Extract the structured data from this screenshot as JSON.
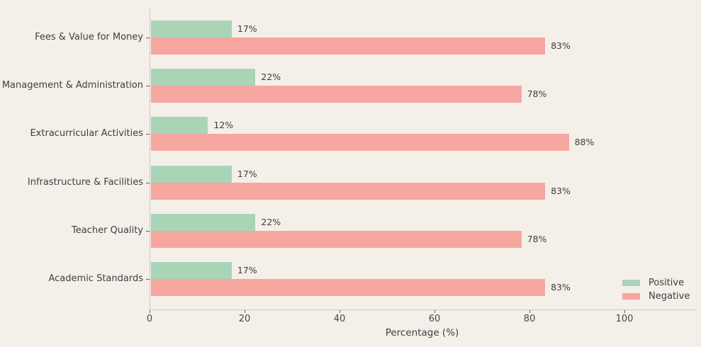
{
  "figure": {
    "background": "#f4efe9",
    "axis_color": "#ccc8c2",
    "text_color": "#3d3d3d"
  },
  "chart_data": {
    "type": "bar",
    "orientation": "horizontal",
    "title": "",
    "xlabel": "Percentage (%)",
    "ylabel": "",
    "categories": [
      "Fees & Value for Money",
      "Management & Administration",
      "Extracurricular Activities",
      "Infrastructure & Facilities",
      "Teacher Quality",
      "Academic Standards"
    ],
    "series": [
      {
        "name": "Positive",
        "color": "#a9d4b6",
        "values": [
          17,
          22,
          12,
          17,
          22,
          17
        ],
        "labels": [
          "17%",
          "22%",
          "12%",
          "17%",
          "22%",
          "17%"
        ]
      },
      {
        "name": "Negative",
        "color": "#f5a7a0",
        "values": [
          83,
          78,
          88,
          83,
          78,
          83
        ],
        "labels": [
          "83%",
          "78%",
          "88%",
          "83%",
          "78%",
          "83%"
        ]
      }
    ],
    "x_ticks": [
      0,
      20,
      40,
      60,
      80,
      100
    ],
    "x_tick_labels": [
      "0",
      "20",
      "40",
      "60",
      "80",
      "100"
    ],
    "xlim": [
      0,
      114.8
    ],
    "grid": false,
    "legend": {
      "position": "lower right",
      "entries": [
        {
          "label": "Positive",
          "color": "#a9d4b6"
        },
        {
          "label": "Negative",
          "color": "#f5a7a0"
        }
      ]
    }
  }
}
